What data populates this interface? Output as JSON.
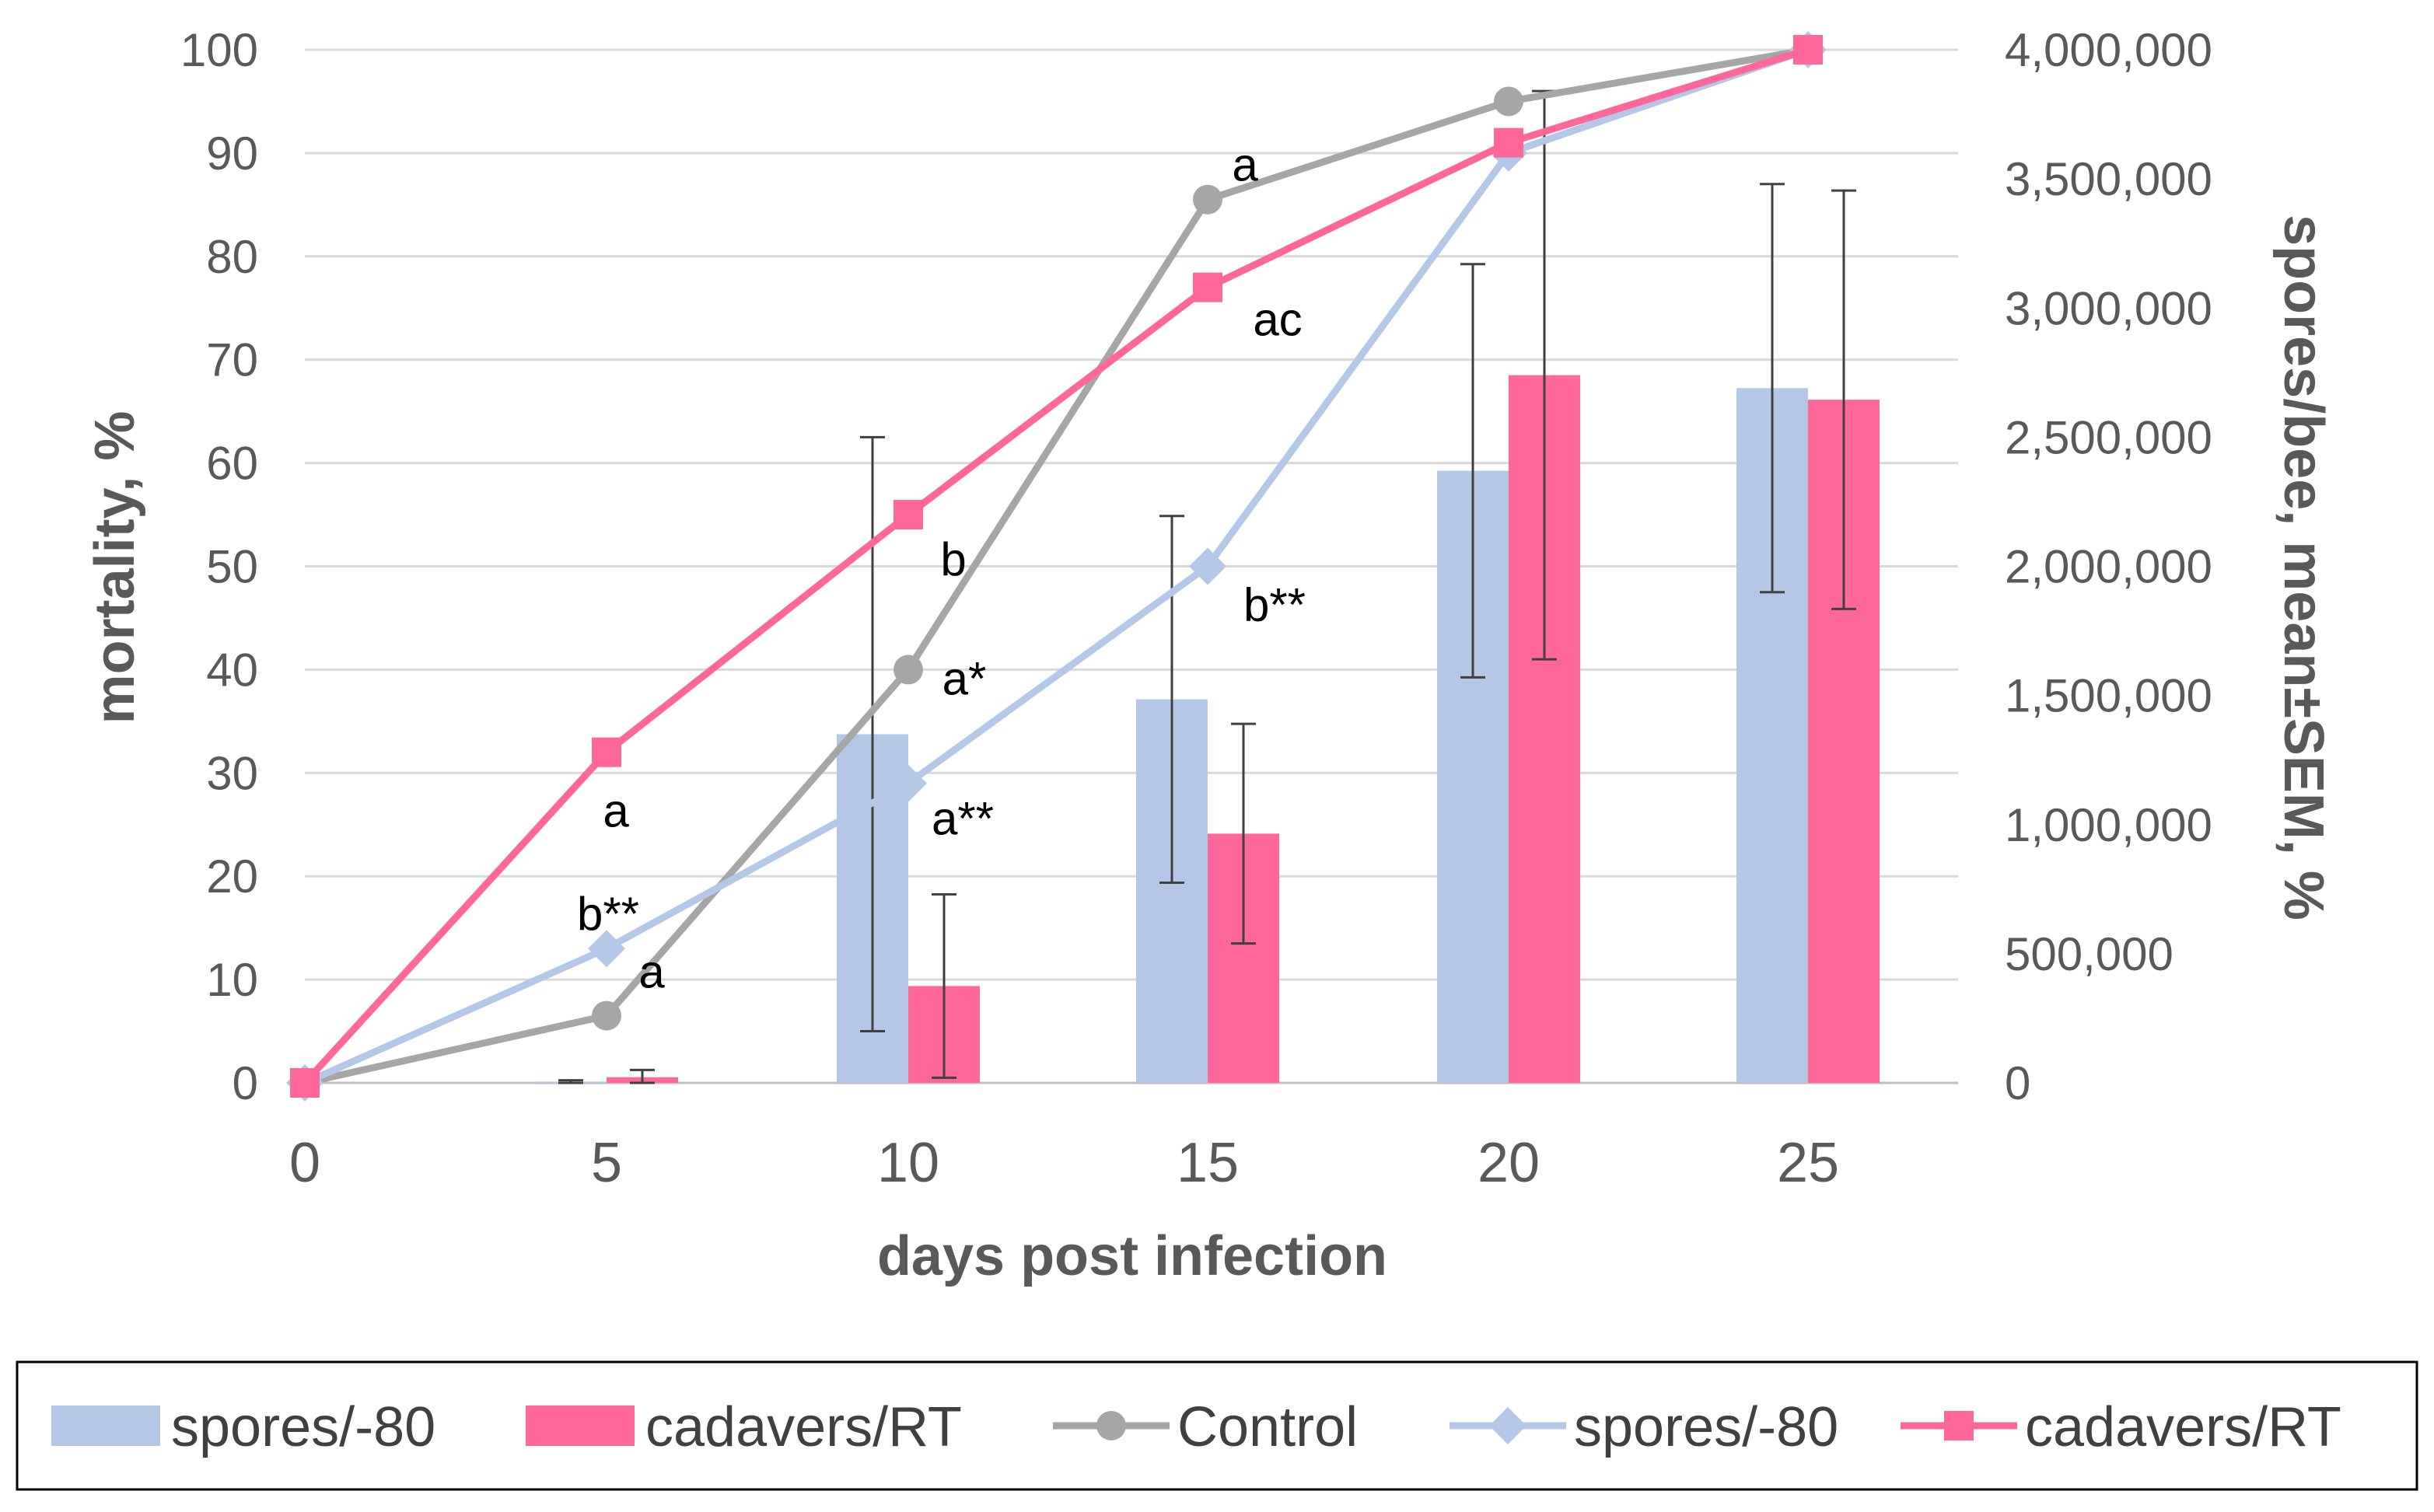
{
  "chart_data": {
    "type": "bar+line",
    "x": [
      0,
      5,
      10,
      15,
      20,
      25
    ],
    "xlabel": "days post infection",
    "ylabel_left": "mortality, %",
    "ylabel_right": "spores/bee, mean±SEM, %",
    "ylim_left": [
      0,
      100
    ],
    "ylim_right": [
      0,
      4000000
    ],
    "yticks_left": [
      "0",
      "10",
      "20",
      "30",
      "40",
      "50",
      "60",
      "70",
      "80",
      "90",
      "100"
    ],
    "yticks_right": [
      "0",
      "500,000",
      "1,000,000",
      "1,500,000",
      "2,000,000",
      "2,500,000",
      "3,000,000",
      "3,500,000",
      "4,000,000"
    ],
    "xticks": [
      "0",
      "5",
      "10",
      "15",
      "20",
      "25"
    ],
    "grid": "horizontal",
    "legend_position": "bottom",
    "bar_series": [
      {
        "name": "spores/-80",
        "axis": "right",
        "color": "#b4c7e7",
        "values": [
          0,
          5000,
          1350000,
          1485000,
          2370000,
          2690000
        ],
        "error": [
          0,
          5000,
          1150000,
          710000,
          800000,
          790000
        ]
      },
      {
        "name": "cadavers/RT",
        "axis": "right",
        "color": "#ff6699",
        "values": [
          0,
          22000,
          375000,
          965000,
          2740000,
          2645000
        ],
        "error": [
          0,
          28000,
          355000,
          425000,
          1100000,
          810000
        ]
      }
    ],
    "line_series": [
      {
        "name": "Control",
        "axis": "left",
        "color": "#a6a6a6",
        "marker": "circle",
        "values": [
          0,
          6.5,
          40,
          85.5,
          95,
          100
        ],
        "labels": [
          "",
          "a",
          "a*",
          "a",
          "",
          ""
        ]
      },
      {
        "name": "spores/-80",
        "axis": "left",
        "color": "#b4c7e7",
        "marker": "diamond",
        "values": [
          0,
          13,
          29,
          50,
          90,
          100
        ],
        "labels": [
          "",
          "b**",
          "a**",
          "b**",
          "",
          ""
        ]
      },
      {
        "name": "cadavers/RT",
        "axis": "left",
        "color": "#ff6699",
        "marker": "square",
        "values": [
          0,
          32,
          55,
          77,
          91,
          100
        ],
        "labels": [
          "",
          "a",
          "b",
          "ac",
          "",
          ""
        ]
      }
    ],
    "legend": [
      {
        "label": "spores/-80",
        "kind": "bar",
        "color": "#b4c7e7"
      },
      {
        "label": "cadavers/RT",
        "kind": "bar",
        "color": "#ff6699"
      },
      {
        "label": "Control",
        "kind": "line",
        "marker": "circle",
        "color": "#a6a6a6"
      },
      {
        "label": "spores/-80",
        "kind": "line",
        "marker": "diamond",
        "color": "#b4c7e7"
      },
      {
        "label": "cadavers/RT",
        "kind": "line",
        "marker": "square",
        "color": "#ff6699"
      }
    ]
  }
}
